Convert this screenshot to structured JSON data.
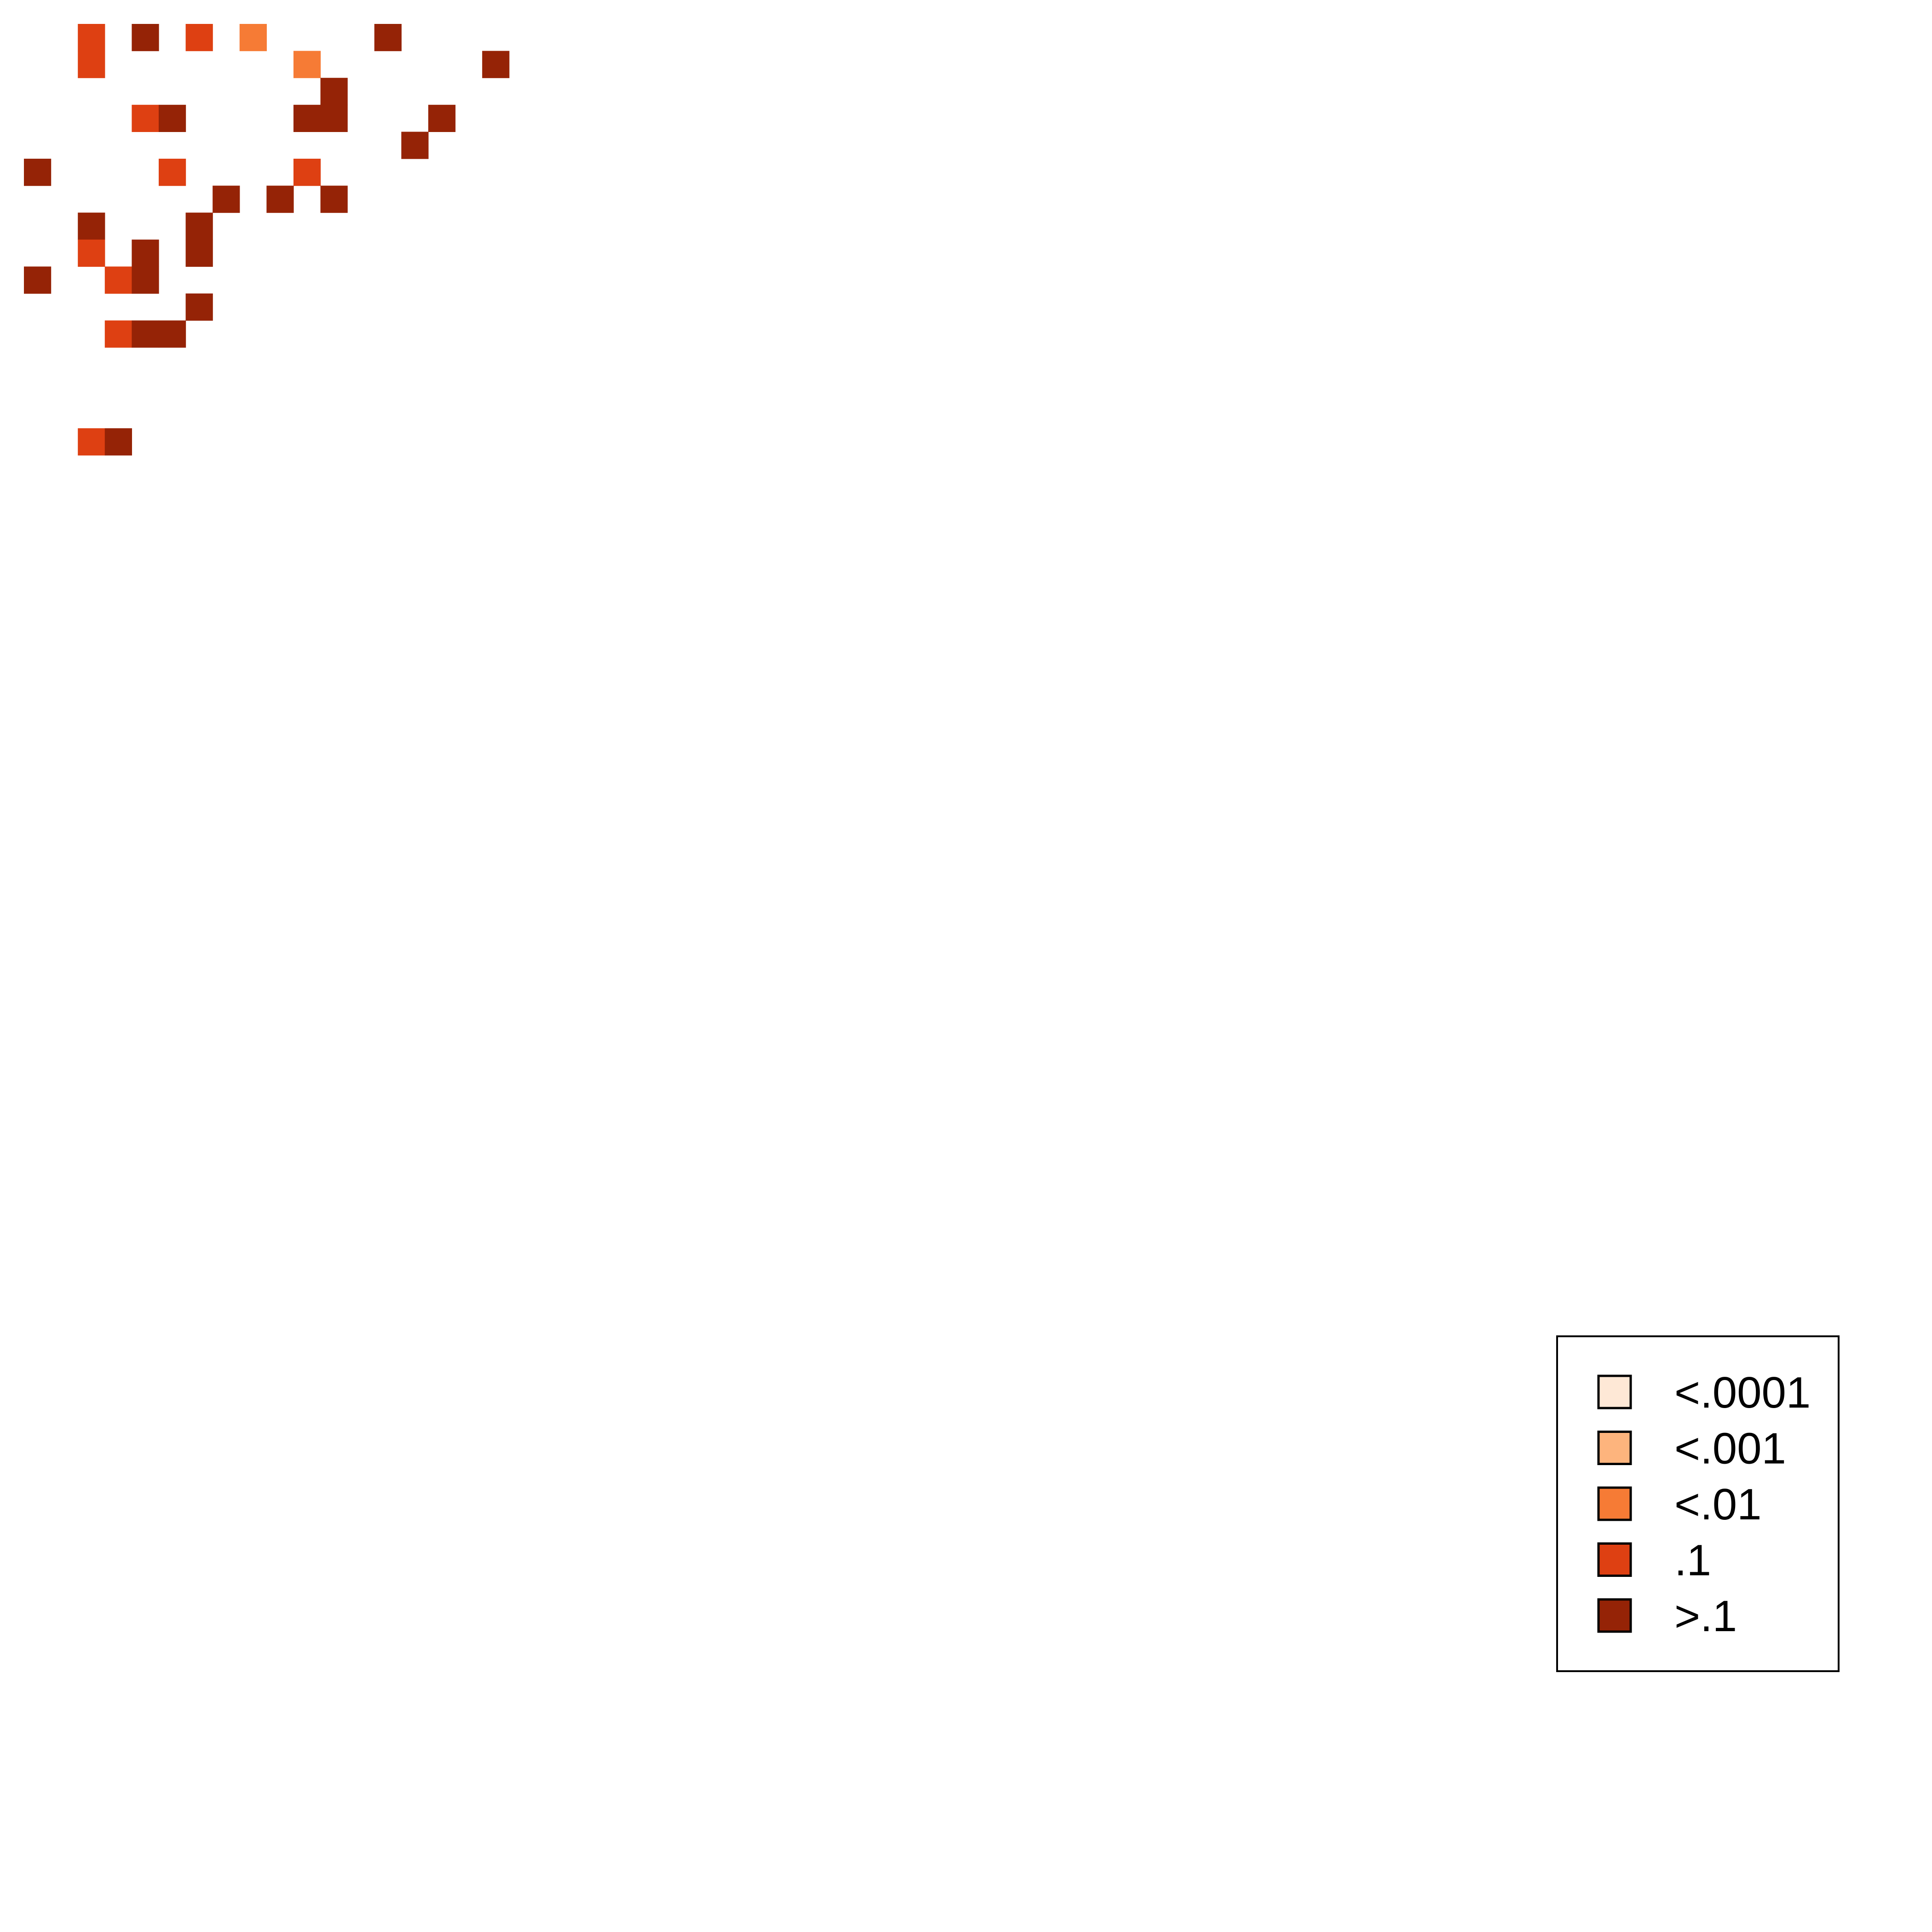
{
  "chart_data": {
    "type": "heatmap",
    "title": "",
    "xlabel": "",
    "ylabel": "",
    "grid": false,
    "legend_placement": "bottom-right",
    "grid_size": [
      72,
      72
    ],
    "legend": [
      {
        "label": "<.0001",
        "color": "#FEE8D6"
      },
      {
        "label": "<.001",
        "color": "#FDB47D"
      },
      {
        "label": "<.01",
        "color": "#F67B35"
      },
      {
        "label": ".1",
        "color": "#DE4012"
      },
      {
        "label": ">.1",
        "color": "#952306"
      }
    ],
    "cells": [
      {
        "row": 0,
        "col": 2,
        "level": 3
      },
      {
        "row": 0,
        "col": 4,
        "level": 4
      },
      {
        "row": 0,
        "col": 6,
        "level": 3
      },
      {
        "row": 0,
        "col": 8,
        "level": 2
      },
      {
        "row": 0,
        "col": 13,
        "level": 4
      },
      {
        "row": 1,
        "col": 2,
        "level": 3
      },
      {
        "row": 1,
        "col": 10,
        "level": 2
      },
      {
        "row": 1,
        "col": 17,
        "level": 4
      },
      {
        "row": 2,
        "col": 11,
        "level": 4
      },
      {
        "row": 3,
        "col": 4,
        "level": 3
      },
      {
        "row": 3,
        "col": 5,
        "level": 4
      },
      {
        "row": 3,
        "col": 10,
        "level": 4
      },
      {
        "row": 3,
        "col": 11,
        "level": 4
      },
      {
        "row": 3,
        "col": 15,
        "level": 4
      },
      {
        "row": 4,
        "col": 14,
        "level": 4
      },
      {
        "row": 5,
        "col": 0,
        "level": 4
      },
      {
        "row": 5,
        "col": 5,
        "level": 3
      },
      {
        "row": 5,
        "col": 10,
        "level": 3
      },
      {
        "row": 6,
        "col": 7,
        "level": 4
      },
      {
        "row": 6,
        "col": 9,
        "level": 4
      },
      {
        "row": 6,
        "col": 11,
        "level": 4
      },
      {
        "row": 7,
        "col": 2,
        "level": 4
      },
      {
        "row": 7,
        "col": 6,
        "level": 4
      },
      {
        "row": 8,
        "col": 2,
        "level": 3
      },
      {
        "row": 8,
        "col": 4,
        "level": 4
      },
      {
        "row": 8,
        "col": 6,
        "level": 4
      },
      {
        "row": 9,
        "col": 0,
        "level": 4
      },
      {
        "row": 9,
        "col": 3,
        "level": 3
      },
      {
        "row": 9,
        "col": 4,
        "level": 4
      },
      {
        "row": 10,
        "col": 6,
        "level": 4
      },
      {
        "row": 11,
        "col": 3,
        "level": 3
      },
      {
        "row": 11,
        "col": 4,
        "level": 4
      },
      {
        "row": 11,
        "col": 5,
        "level": 4
      },
      {
        "row": 15,
        "col": 2,
        "level": 3
      },
      {
        "row": 15,
        "col": 3,
        "level": 4
      }
    ]
  }
}
